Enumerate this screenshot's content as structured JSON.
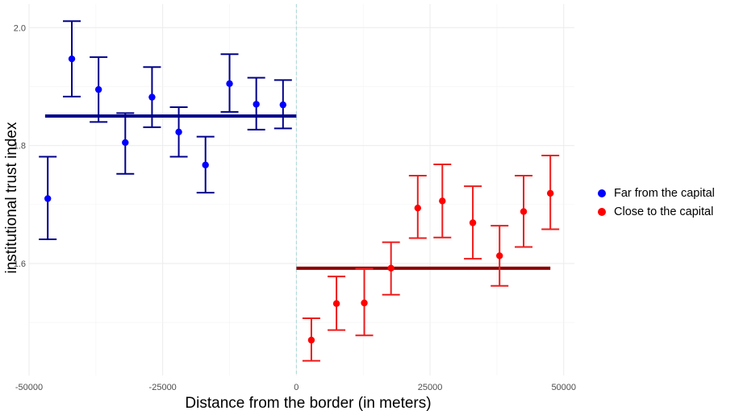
{
  "chart_data": {
    "type": "scatter",
    "xlabel": "Distance from the border (in meters)",
    "ylabel": "institutional trust index",
    "xlim": [
      -50000,
      52000
    ],
    "ylim": [
      1.41,
      2.04
    ],
    "x_ticks": [
      -50000,
      -25000,
      0,
      25000,
      50000
    ],
    "x_tick_labels": [
      "-50000",
      "-25000",
      "0",
      "25000",
      "50000"
    ],
    "y_ticks": [
      1.6,
      1.8,
      2.0
    ],
    "y_tick_labels": [
      "1.6",
      "1.8",
      "2.0"
    ],
    "grid": true,
    "cutoff_x": 0,
    "legend_position": "right",
    "series": [
      {
        "name": "Far from the capital",
        "color": "#0000ff",
        "errorbar_color": "#00008b",
        "fit_color": "#00008b",
        "fit": {
          "x_from": -47000,
          "x_to": 0,
          "y": 1.85
        },
        "points": [
          {
            "x": -46500,
            "y": 1.71,
            "lo": 1.641,
            "hi": 1.781
          },
          {
            "x": -42000,
            "y": 1.947,
            "lo": 1.883,
            "hi": 2.011
          },
          {
            "x": -37000,
            "y": 1.895,
            "lo": 1.84,
            "hi": 1.95
          },
          {
            "x": -32000,
            "y": 1.805,
            "lo": 1.752,
            "hi": 1.855
          },
          {
            "x": -27000,
            "y": 1.882,
            "lo": 1.831,
            "hi": 1.933
          },
          {
            "x": -22000,
            "y": 1.823,
            "lo": 1.781,
            "hi": 1.865
          },
          {
            "x": -17000,
            "y": 1.767,
            "lo": 1.72,
            "hi": 1.815
          },
          {
            "x": -12500,
            "y": 1.905,
            "lo": 1.857,
            "hi": 1.955
          },
          {
            "x": -7500,
            "y": 1.87,
            "lo": 1.827,
            "hi": 1.915
          },
          {
            "x": -2500,
            "y": 1.869,
            "lo": 1.829,
            "hi": 1.911
          }
        ]
      },
      {
        "name": "Close to the capital",
        "color": "#ff0000",
        "errorbar_color": "#ee1c1c",
        "fit_color": "#8b0000",
        "fit": {
          "x_from": 0,
          "x_to": 47500,
          "y": 1.592
        },
        "points": [
          {
            "x": 2800,
            "y": 1.47,
            "lo": 1.435,
            "hi": 1.507
          },
          {
            "x": 7500,
            "y": 1.532,
            "lo": 1.487,
            "hi": 1.578
          },
          {
            "x": 12700,
            "y": 1.533,
            "lo": 1.478,
            "hi": 1.591
          },
          {
            "x": 17700,
            "y": 1.592,
            "lo": 1.547,
            "hi": 1.636
          },
          {
            "x": 22700,
            "y": 1.694,
            "lo": 1.643,
            "hi": 1.749
          },
          {
            "x": 27300,
            "y": 1.706,
            "lo": 1.644,
            "hi": 1.768
          },
          {
            "x": 33000,
            "y": 1.669,
            "lo": 1.608,
            "hi": 1.731
          },
          {
            "x": 38000,
            "y": 1.613,
            "lo": 1.562,
            "hi": 1.664
          },
          {
            "x": 42500,
            "y": 1.688,
            "lo": 1.628,
            "hi": 1.749
          },
          {
            "x": 47500,
            "y": 1.719,
            "lo": 1.658,
            "hi": 1.783
          }
        ]
      }
    ]
  }
}
